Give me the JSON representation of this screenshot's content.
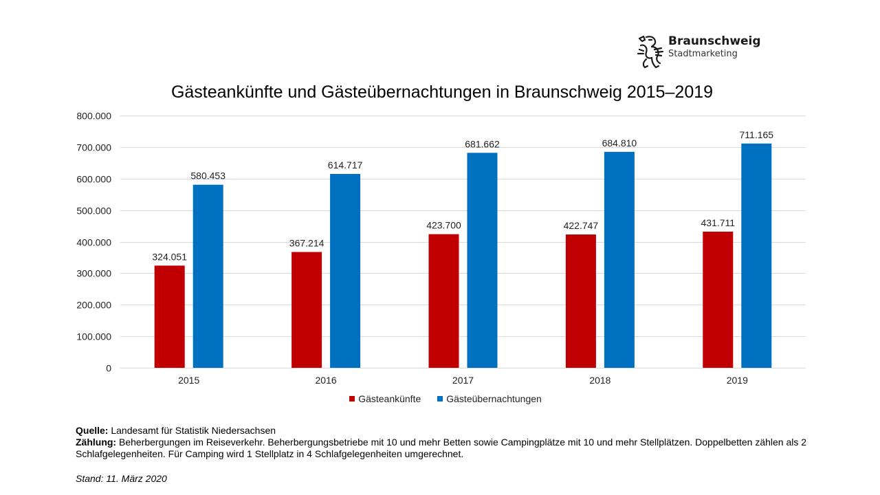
{
  "logo": {
    "title": "Braunschweig",
    "subtitle": "Stadtmarketing",
    "icon": "heraldic-lion-icon"
  },
  "footer": {
    "source_label": "Quelle:",
    "source_text": " Landesamt für Statistik Niedersachsen",
    "count_label": "Zählung:",
    "count_text": " Beherbergungen im Reiseverkehr. Beherbergungsbetriebe mit 10 und mehr Betten sowie Campingplätze mit 10 und mehr Stellplätzen. Doppelbetten zählen als 2 Schlafgelegenheiten. Für Camping wird 1 Stellplatz in 4 Schlafgelegenheiten umgerechnet.",
    "stand": "Stand: 11. März 2020"
  },
  "chart_data": {
    "type": "bar",
    "title": "Gästeankünfte und Gästeübernachtungen in Braunschweig 2015–2019",
    "xlabel": "",
    "ylabel": "",
    "categories": [
      "2015",
      "2016",
      "2017",
      "2018",
      "2019"
    ],
    "series": [
      {
        "name": "Gästeankünfte",
        "color": "#C00000",
        "values": [
          324051,
          367214,
          423700,
          422747,
          431711
        ],
        "labels": [
          "324.051",
          "367.214",
          "423.700",
          "422.747",
          "431.711"
        ]
      },
      {
        "name": "Gästeübernachtungen",
        "color": "#0070C0",
        "values": [
          580453,
          614717,
          681662,
          684810,
          711165
        ],
        "labels": [
          "580.453",
          "614.717",
          "681.662",
          "684.810",
          "711.165"
        ]
      }
    ],
    "ylim": [
      0,
      800000
    ],
    "yticks": [
      0,
      100000,
      200000,
      300000,
      400000,
      500000,
      600000,
      700000,
      800000
    ],
    "ytick_labels": [
      "0",
      "100.000",
      "200.000",
      "300.000",
      "400.000",
      "500.000",
      "600.000",
      "700.000",
      "800.000"
    ],
    "grid": true,
    "gridline_color": "#D9D9D9",
    "legend_position": "bottom"
  }
}
